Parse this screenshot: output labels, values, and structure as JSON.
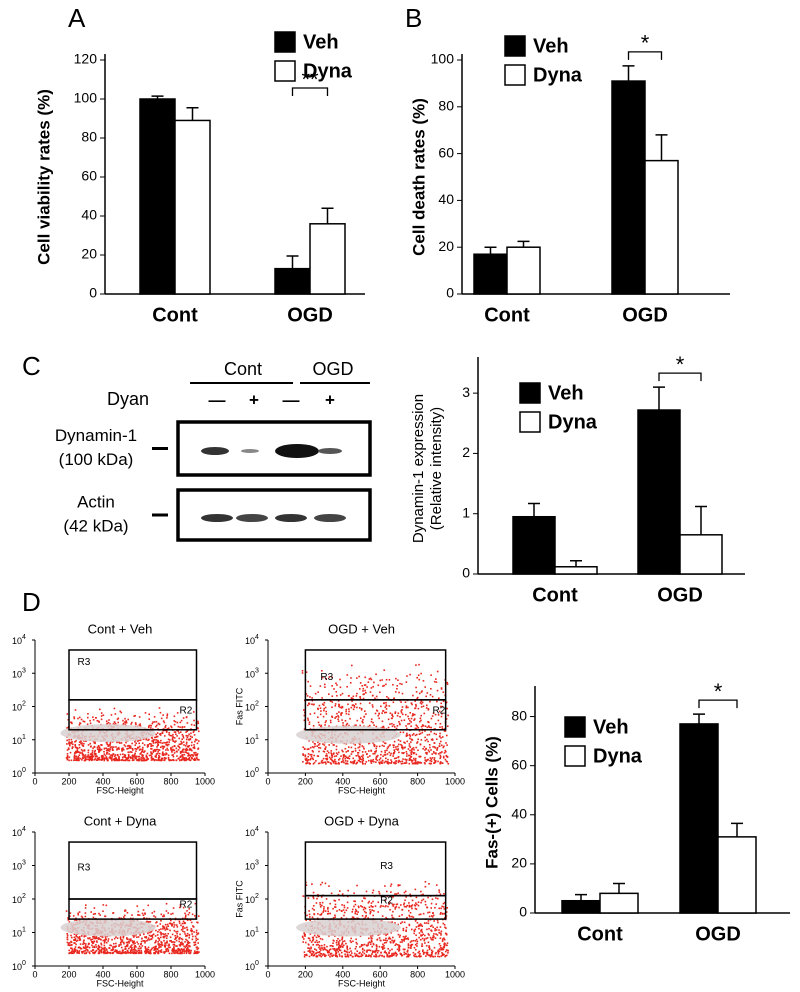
{
  "chart_data": [
    {
      "type": "bar",
      "panel": "A",
      "ylabel": "Cell viability rates (%)",
      "categories": [
        "Cont",
        "OGD"
      ],
      "series": [
        {
          "name": "Veh",
          "color": "#000000",
          "values": [
            100,
            13
          ],
          "errors": [
            1.5,
            6.5
          ]
        },
        {
          "name": "Dyna",
          "color": "#ffffff",
          "values": [
            89,
            36
          ],
          "errors": [
            6.5,
            8
          ]
        }
      ],
      "ylim": [
        0,
        120
      ],
      "yticks": [
        0,
        20,
        40,
        60,
        80,
        100,
        120
      ],
      "annotations": [
        {
          "text": "**",
          "category": "OGD"
        }
      ]
    },
    {
      "type": "bar",
      "panel": "B",
      "ylabel": "Cell death rates (%)",
      "categories": [
        "Cont",
        "OGD"
      ],
      "series": [
        {
          "name": "Veh",
          "color": "#000000",
          "values": [
            17,
            91
          ],
          "errors": [
            3,
            6.5
          ]
        },
        {
          "name": "Dyna",
          "color": "#ffffff",
          "values": [
            20,
            57
          ],
          "errors": [
            2.5,
            11
          ]
        }
      ],
      "ylim": [
        0,
        100
      ],
      "yticks": [
        0,
        20,
        40,
        60,
        80,
        100
      ],
      "annotations": [
        {
          "text": "*",
          "category": "OGD"
        }
      ]
    },
    {
      "type": "bar",
      "panel": "C",
      "ylabel": [
        "Dynamin-1 expression",
        "(Relative intensity)"
      ],
      "categories": [
        "Cont",
        "OGD"
      ],
      "series": [
        {
          "name": "Veh",
          "color": "#000000",
          "values": [
            0.95,
            2.72
          ],
          "errors": [
            0.22,
            0.38
          ]
        },
        {
          "name": "Dyna",
          "color": "#ffffff",
          "values": [
            0.12,
            0.65
          ],
          "errors": [
            0.1,
            0.47
          ]
        }
      ],
      "ylim": [
        0,
        3.5
      ],
      "yticks": [
        0,
        1,
        2,
        3
      ],
      "annotations": [
        {
          "text": "*",
          "category": "OGD"
        }
      ]
    },
    {
      "type": "bar",
      "panel": "D",
      "ylabel": "Fas-(+) Cells (%)",
      "categories": [
        "Cont",
        "OGD"
      ],
      "series": [
        {
          "name": "Veh",
          "color": "#000000",
          "values": [
            5,
            77
          ],
          "errors": [
            2.5,
            4
          ]
        },
        {
          "name": "Dyna",
          "color": "#ffffff",
          "values": [
            8,
            31
          ],
          "errors": [
            4,
            5.5
          ]
        }
      ],
      "ylim": [
        0,
        90
      ],
      "yticks": [
        0,
        20,
        40,
        60,
        80
      ],
      "annotations": [
        {
          "text": "*",
          "category": "OGD"
        }
      ]
    }
  ],
  "blot": {
    "groups": [
      "Cont",
      "OGD"
    ],
    "treatment": "Dyan",
    "signs": [
      "—",
      "+",
      "—",
      "+"
    ],
    "rows": [
      {
        "name": "Dynamin-1",
        "size": "(100 kDa)"
      },
      {
        "name": "Actin",
        "size": "(42 kDa)"
      }
    ]
  },
  "flow": {
    "xlim": [
      0,
      1000
    ],
    "xticks": [
      0,
      200,
      400,
      600,
      800,
      1000
    ],
    "ylim": [
      1,
      10000
    ],
    "log_y": true,
    "yticks": [
      {
        "value": 1,
        "label": "10",
        "sup": "0"
      },
      {
        "value": 10,
        "label": "10",
        "sup": "1"
      },
      {
        "value": 100,
        "label": "10",
        "sup": "2"
      },
      {
        "value": 1000,
        "label": "10",
        "sup": "3"
      },
      {
        "value": 10000,
        "label": "10",
        "sup": "4"
      }
    ],
    "plots": [
      {
        "title": "Cont + Veh",
        "xlabel": "FSC-Height",
        "gates": [
          "R3",
          "R2"
        ]
      },
      {
        "title": "OGD + Veh",
        "xlabel": "FSC-Height",
        "ylabel": "Fas FITC",
        "gates": [
          "R3",
          "R2"
        ]
      },
      {
        "title": "Cont + Dyna",
        "xlabel": "FSC-Height",
        "gates": [
          "R3",
          "R2"
        ]
      },
      {
        "title": "OGD + Dyna",
        "xlabel": "FSC-Height",
        "ylabel": "Fas FITC",
        "gates": [
          "R3",
          "R2"
        ]
      }
    ]
  }
}
